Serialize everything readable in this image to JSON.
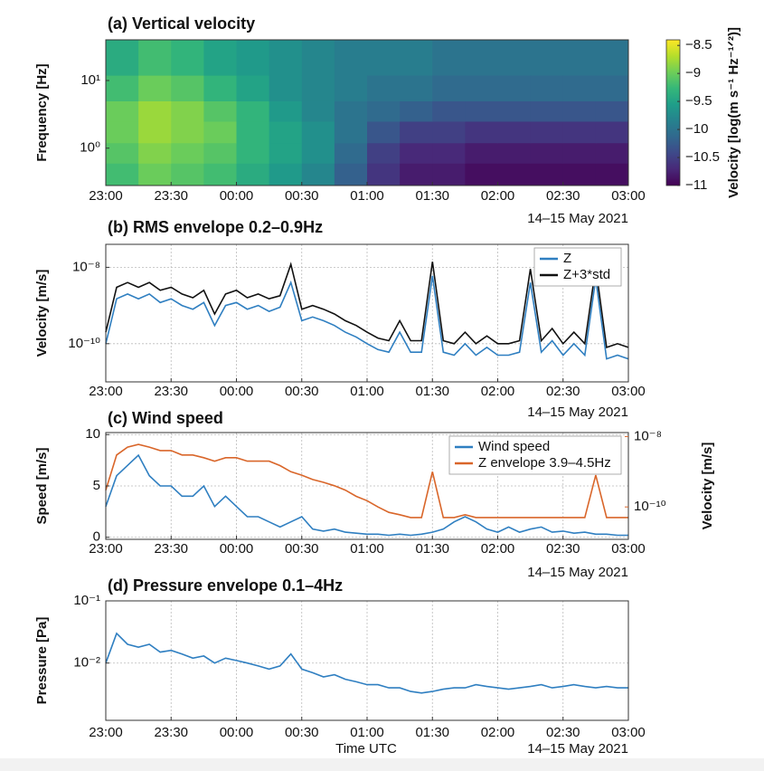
{
  "chart_data": [
    {
      "type": "heatmap",
      "title": "(a) Vertical velocity",
      "ylabel": "Frequency [Hz]",
      "date_label": "14–15 May 2021",
      "xlim": [
        "23:00",
        "03:00"
      ],
      "xticks": [
        "23:00",
        "23:30",
        "00:00",
        "00:30",
        "01:00",
        "01:30",
        "02:00",
        "02:30",
        "03:00"
      ],
      "ylog": true,
      "ylim": [
        0.28,
        40
      ],
      "yticks": [
        {
          "value": 1,
          "label": "10⁰"
        },
        {
          "value": 10,
          "label": "10¹"
        }
      ],
      "x_bins": [
        "23:00",
        "23:15",
        "23:30",
        "23:45",
        "00:00",
        "00:15",
        "00:30",
        "00:45",
        "01:00",
        "01:15",
        "01:30",
        "01:45",
        "02:00",
        "02:15",
        "02:30",
        "02:45",
        "03:00"
      ],
      "y_bins": [
        0.28,
        0.6,
        1.2,
        2.5,
        5,
        12,
        40
      ],
      "values": [
        [
          -9.2,
          -9.0,
          -9.1,
          -9.2,
          -9.4,
          -9.6,
          -9.8,
          -10.2,
          -10.6,
          -10.8,
          -10.8,
          -10.9,
          -10.9,
          -10.9,
          -10.9,
          -10.9
        ],
        [
          -9.1,
          -8.9,
          -9.0,
          -9.1,
          -9.3,
          -9.5,
          -9.7,
          -10.1,
          -10.5,
          -10.7,
          -10.7,
          -10.8,
          -10.8,
          -10.8,
          -10.8,
          -10.8
        ],
        [
          -9.0,
          -8.8,
          -8.9,
          -9.0,
          -9.3,
          -9.5,
          -9.7,
          -10.0,
          -10.3,
          -10.5,
          -10.5,
          -10.6,
          -10.6,
          -10.6,
          -10.6,
          -10.6
        ],
        [
          -9.0,
          -8.8,
          -8.9,
          -9.1,
          -9.3,
          -9.6,
          -9.8,
          -10.0,
          -10.1,
          -10.2,
          -10.3,
          -10.3,
          -10.3,
          -10.3,
          -10.3,
          -10.3
        ],
        [
          -9.2,
          -9.0,
          -9.1,
          -9.3,
          -9.5,
          -9.7,
          -9.8,
          -9.9,
          -10.0,
          -10.0,
          -10.1,
          -10.1,
          -10.1,
          -10.1,
          -10.1,
          -10.1
        ],
        [
          -9.4,
          -9.2,
          -9.3,
          -9.5,
          -9.6,
          -9.7,
          -9.8,
          -9.9,
          -9.9,
          -9.9,
          -10.0,
          -10.0,
          -10.0,
          -10.0,
          -10.0,
          -10.0
        ]
      ],
      "colormap": "viridis",
      "clim": [
        -11,
        -8.4
      ],
      "cticks": [
        {
          "value": -8.5,
          "label": "−8.5"
        },
        {
          "value": -9,
          "label": "−9"
        },
        {
          "value": -9.5,
          "label": "−9.5"
        },
        {
          "value": -10,
          "label": "−10"
        },
        {
          "value": -10.5,
          "label": "−10.5"
        },
        {
          "value": -11,
          "label": "−11"
        }
      ],
      "colorbar_label": "Velocity [log(m s⁻¹ Hz⁻¹ᐟ²)]"
    },
    {
      "type": "line",
      "title": "(b) RMS envelope 0.2–0.9Hz",
      "ylabel": "Velocity [m/s]",
      "date_label": "14–15 May 2021",
      "xlim": [
        "23:00",
        "03:00"
      ],
      "xticks": [
        "23:00",
        "23:30",
        "00:00",
        "00:30",
        "01:00",
        "01:30",
        "02:00",
        "02:30",
        "03:00"
      ],
      "ylog": true,
      "ylim": [
        1e-11,
        4e-08
      ],
      "yticks": [
        {
          "value": 1e-08,
          "label": "10⁻⁸"
        },
        {
          "value": 1e-10,
          "label": "10⁻¹⁰"
        }
      ],
      "grid": true,
      "legend": "upper right",
      "x": [
        "23:00",
        "23:05",
        "23:10",
        "23:15",
        "23:20",
        "23:25",
        "23:30",
        "23:35",
        "23:40",
        "23:45",
        "23:50",
        "23:55",
        "00:00",
        "00:05",
        "00:10",
        "00:15",
        "00:20",
        "00:25",
        "00:30",
        "00:35",
        "00:40",
        "00:45",
        "00:50",
        "00:55",
        "01:00",
        "01:05",
        "01:10",
        "01:15",
        "01:20",
        "01:25",
        "01:30",
        "01:35",
        "01:40",
        "01:45",
        "01:50",
        "01:55",
        "02:00",
        "02:05",
        "02:10",
        "02:15",
        "02:20",
        "02:25",
        "02:30",
        "02:35",
        "02:40",
        "02:45",
        "02:50",
        "02:55",
        "03:00"
      ],
      "series": [
        {
          "name": "Z",
          "color": "#2f7fc1",
          "values": [
            1e-10,
            1.5e-09,
            2e-09,
            1.5e-09,
            2e-09,
            1.2e-09,
            1.5e-09,
            1e-09,
            8e-10,
            1.2e-09,
            3e-10,
            1e-09,
            1.2e-09,
            8e-10,
            1e-09,
            7e-10,
            9e-10,
            4e-09,
            4e-10,
            5e-10,
            4e-10,
            3e-10,
            2e-10,
            1.5e-10,
            1e-10,
            7e-11,
            6e-11,
            2e-10,
            6e-11,
            6e-11,
            6e-09,
            6e-11,
            5e-11,
            1e-10,
            5e-11,
            8e-11,
            5e-11,
            5e-11,
            6e-11,
            4e-09,
            6e-11,
            1.2e-10,
            5e-11,
            1e-10,
            5e-11,
            5e-09,
            4e-11,
            5e-11,
            4e-11
          ]
        },
        {
          "name": "Z+3*std",
          "color": "#111111",
          "values": [
            2e-10,
            3e-09,
            4e-09,
            3e-09,
            4e-09,
            2.5e-09,
            3e-09,
            2e-09,
            1.6e-09,
            2.5e-09,
            6e-10,
            2e-09,
            2.5e-09,
            1.6e-09,
            2e-09,
            1.5e-09,
            1.8e-09,
            1.2e-08,
            8e-10,
            1e-09,
            8e-10,
            6e-10,
            4e-10,
            3e-10,
            2e-10,
            1.4e-10,
            1.2e-10,
            4e-10,
            1.2e-10,
            1.2e-10,
            1.4e-08,
            1.2e-10,
            1e-10,
            2e-10,
            1e-10,
            1.6e-10,
            1e-10,
            1e-10,
            1.2e-10,
            9e-09,
            1.2e-10,
            2.5e-10,
            1e-10,
            2e-10,
            1e-10,
            1e-08,
            8e-11,
            1e-10,
            8e-11
          ]
        }
      ]
    },
    {
      "type": "line",
      "title": "(c) Wind speed",
      "ylabel": "Speed [m/s]",
      "y2label": "Velocity [m/s]",
      "date_label": "14–15 May 2021",
      "xlim": [
        "23:00",
        "03:00"
      ],
      "xticks": [
        "23:00",
        "23:30",
        "00:00",
        "00:30",
        "01:00",
        "01:30",
        "02:00",
        "02:30",
        "03:00"
      ],
      "ylim": [
        -0.2,
        10.2
      ],
      "yticks": [
        0,
        5,
        10
      ],
      "y2log": true,
      "y2lim": [
        1.2e-11,
        1.3e-08
      ],
      "y2ticks": [
        {
          "value": 1e-08,
          "label": "10⁻⁸"
        },
        {
          "value": 1e-10,
          "label": "10⁻¹⁰"
        }
      ],
      "y2color": "#d9662a",
      "grid": true,
      "legend": "upper right",
      "x": [
        "23:00",
        "23:05",
        "23:10",
        "23:15",
        "23:20",
        "23:25",
        "23:30",
        "23:35",
        "23:40",
        "23:45",
        "23:50",
        "23:55",
        "00:00",
        "00:05",
        "00:10",
        "00:15",
        "00:20",
        "00:25",
        "00:30",
        "00:35",
        "00:40",
        "00:45",
        "00:50",
        "00:55",
        "01:00",
        "01:05",
        "01:10",
        "01:15",
        "01:20",
        "01:25",
        "01:30",
        "01:35",
        "01:40",
        "01:45",
        "01:50",
        "01:55",
        "02:00",
        "02:05",
        "02:10",
        "02:15",
        "02:20",
        "02:25",
        "02:30",
        "02:35",
        "02:40",
        "02:45",
        "02:50",
        "02:55",
        "03:00"
      ],
      "series": [
        {
          "name": "Wind speed",
          "color": "#2f7fc1",
          "values": [
            3,
            6,
            7,
            8,
            6,
            5,
            5,
            4,
            4,
            5,
            3,
            4,
            3,
            2,
            2,
            1.5,
            1,
            1.5,
            2,
            0.8,
            0.6,
            0.8,
            0.5,
            0.4,
            0.3,
            0.3,
            0.2,
            0.3,
            0.2,
            0.3,
            0.5,
            0.8,
            1.5,
            2,
            1.5,
            0.8,
            0.5,
            1,
            0.5,
            0.8,
            1,
            0.5,
            0.6,
            0.4,
            0.5,
            0.3,
            0.3,
            0.2,
            0.2
          ]
        },
        {
          "name": "Z envelope 3.9–4.5Hz",
          "color": "#d9662a",
          "axis": "y2",
          "values": [
            3e-10,
            3e-09,
            5e-09,
            6e-09,
            5e-09,
            4e-09,
            4e-09,
            3e-09,
            3e-09,
            2.5e-09,
            2e-09,
            2.5e-09,
            2.5e-09,
            2e-09,
            2e-09,
            2e-09,
            1.5e-09,
            1e-09,
            8e-10,
            6e-10,
            5e-10,
            4e-10,
            3e-10,
            2e-10,
            1.5e-10,
            1e-10,
            7e-11,
            6e-11,
            5e-11,
            5e-11,
            1e-09,
            5e-11,
            5e-11,
            6e-11,
            5e-11,
            5e-11,
            5e-11,
            5e-11,
            5e-11,
            5e-11,
            5e-11,
            5e-11,
            5e-11,
            5e-11,
            5e-11,
            8e-10,
            5e-11,
            5e-11,
            5e-11
          ]
        }
      ]
    },
    {
      "type": "line",
      "title": "(d) Pressure envelope 0.1–4Hz",
      "ylabel": "Pressure [Pa]",
      "xlabel": "Time UTC",
      "date_label": "14–15 May 2021",
      "xlim": [
        "23:00",
        "03:00"
      ],
      "xticks": [
        "23:00",
        "23:30",
        "00:00",
        "00:30",
        "01:00",
        "01:30",
        "02:00",
        "02:30",
        "03:00"
      ],
      "ylog": true,
      "ylim": [
        0.0012,
        0.1
      ],
      "yticks": [
        {
          "value": 0.1,
          "label": "10⁻¹"
        },
        {
          "value": 0.01,
          "label": "10⁻²"
        }
      ],
      "grid": true,
      "x": [
        "23:00",
        "23:05",
        "23:10",
        "23:15",
        "23:20",
        "23:25",
        "23:30",
        "23:35",
        "23:40",
        "23:45",
        "23:50",
        "23:55",
        "00:00",
        "00:05",
        "00:10",
        "00:15",
        "00:20",
        "00:25",
        "00:30",
        "00:35",
        "00:40",
        "00:45",
        "00:50",
        "00:55",
        "01:00",
        "01:05",
        "01:10",
        "01:15",
        "01:20",
        "01:25",
        "01:30",
        "01:35",
        "01:40",
        "01:45",
        "01:50",
        "01:55",
        "02:00",
        "02:05",
        "02:10",
        "02:15",
        "02:20",
        "02:25",
        "02:30",
        "02:35",
        "02:40",
        "02:45",
        "02:50",
        "02:55",
        "03:00"
      ],
      "series": [
        {
          "color": "#2f7fc1",
          "values": [
            0.01,
            0.03,
            0.02,
            0.018,
            0.02,
            0.015,
            0.016,
            0.014,
            0.012,
            0.013,
            0.01,
            0.012,
            0.011,
            0.01,
            0.009,
            0.008,
            0.009,
            0.014,
            0.008,
            0.007,
            0.006,
            0.0065,
            0.0055,
            0.005,
            0.0045,
            0.0045,
            0.004,
            0.004,
            0.0035,
            0.0033,
            0.0035,
            0.0038,
            0.004,
            0.004,
            0.0045,
            0.0042,
            0.004,
            0.0038,
            0.004,
            0.0042,
            0.0045,
            0.004,
            0.0042,
            0.0045,
            0.0042,
            0.004,
            0.0042,
            0.004,
            0.004
          ]
        }
      ]
    }
  ]
}
